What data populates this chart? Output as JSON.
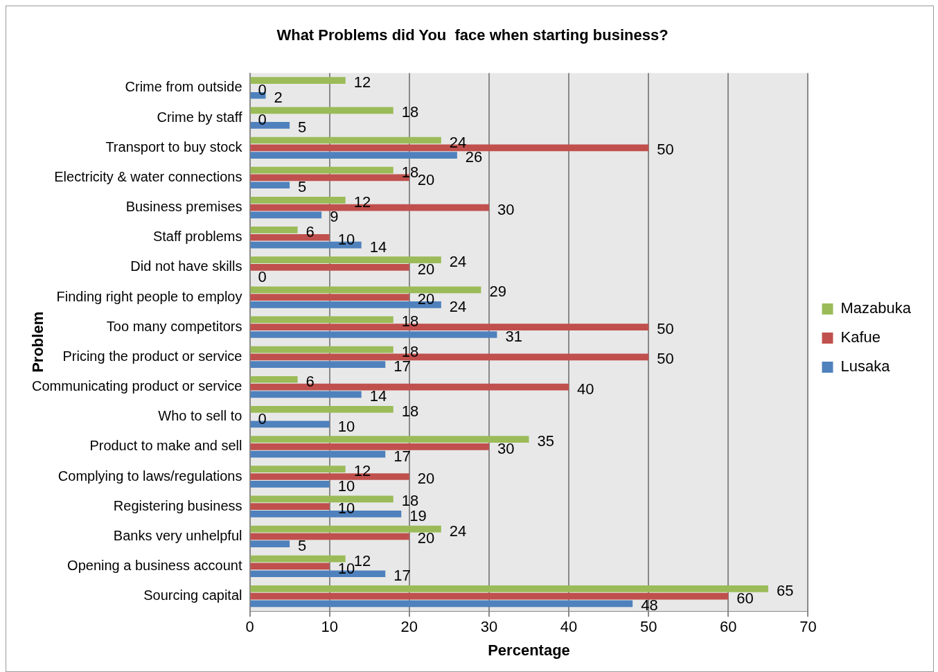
{
  "chart_data": {
    "type": "bar",
    "orientation": "horizontal",
    "title": "What Problems did You  face when starting business?",
    "xlabel": "Percentage",
    "ylabel": "Problem",
    "categories": [
      "Crime from outside",
      "Crime by staff",
      "Transport to buy stock",
      "Electricity & water connections",
      "Business premises",
      "Staff problems",
      "Did not have skills",
      "Finding right people to employ",
      "Too many competitors",
      "Pricing the product or service",
      "Communicating product or service",
      "Who to sell to",
      "Product to make and sell",
      "Complying to laws/regulations",
      "Registering business",
      "Banks very unhelpful",
      "Opening a business account",
      "Sourcing capital"
    ],
    "series": [
      {
        "name": "Mazabuka",
        "color": "#9bbb59",
        "values": [
          12,
          18,
          24,
          18,
          12,
          6,
          24,
          29,
          18,
          18,
          6,
          18,
          35,
          12,
          18,
          24,
          12,
          65
        ]
      },
      {
        "name": "Kafue",
        "color": "#c0504d",
        "values": [
          0,
          0,
          50,
          20,
          30,
          10,
          20,
          20,
          50,
          50,
          40,
          0,
          30,
          20,
          10,
          20,
          10,
          60
        ]
      },
      {
        "name": "Lusaka",
        "color": "#4f81bd",
        "values": [
          2,
          5,
          26,
          5,
          9,
          14,
          0,
          24,
          31,
          17,
          14,
          10,
          17,
          10,
          19,
          5,
          17,
          48
        ]
      }
    ],
    "xlim": [
      0,
      70
    ],
    "xticks": [
      0,
      10,
      20,
      30,
      40,
      50,
      60,
      70
    ],
    "grid": "x",
    "legend": "right",
    "data_labels": true
  }
}
